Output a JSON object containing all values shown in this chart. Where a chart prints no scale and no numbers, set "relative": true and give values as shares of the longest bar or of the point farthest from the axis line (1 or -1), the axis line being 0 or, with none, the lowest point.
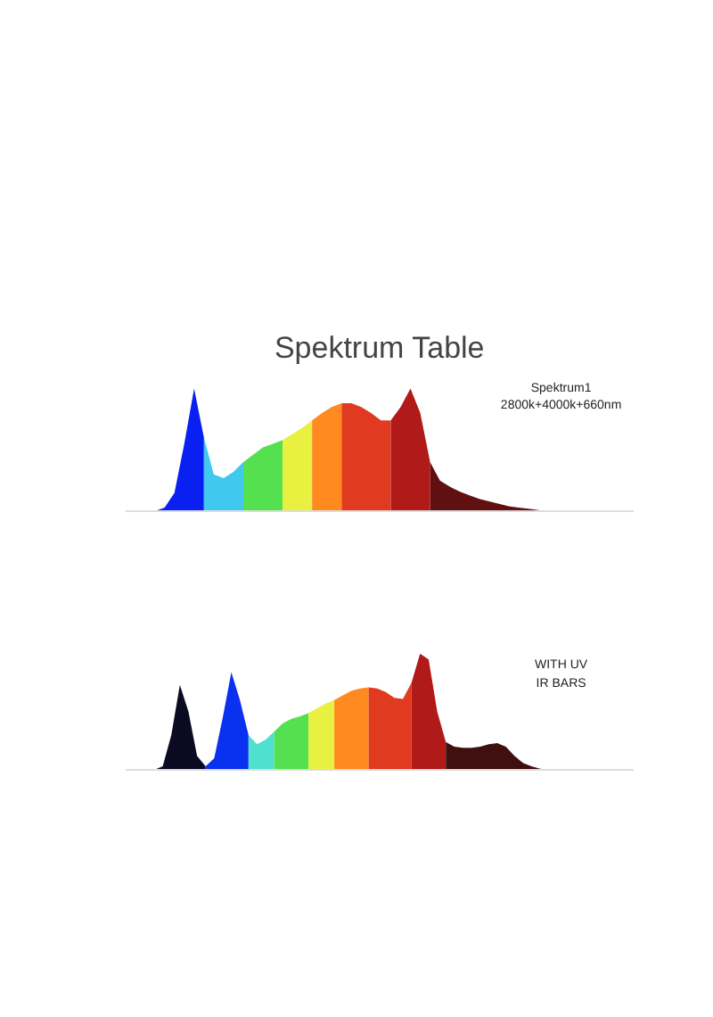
{
  "chart_data": [
    {
      "type": "area",
      "title": "Spektrum Table",
      "relative": true,
      "annotations": [
        "Spektrum1",
        "2800k+4000k+660nm"
      ],
      "categories": [
        null,
        null,
        null,
        null,
        null,
        null,
        null,
        null,
        null,
        null,
        null,
        null,
        null,
        null,
        null,
        null,
        null,
        null,
        null,
        null,
        null,
        null,
        null,
        null,
        null,
        null,
        null,
        null,
        null,
        null,
        null,
        null,
        null,
        null,
        null,
        null,
        null,
        null,
        null,
        null,
        null
      ],
      "series": [
        {
          "color": "#0a20f0",
          "values": [
            0,
            0.03,
            0.15,
            0.55,
            1.0,
            0.6,
            null,
            null,
            null,
            null,
            null,
            null,
            null,
            null,
            null,
            null,
            null,
            null,
            null,
            null,
            null,
            null,
            null,
            null,
            null,
            null,
            null,
            null,
            null,
            null,
            null,
            null,
            null,
            null,
            null,
            null,
            null,
            null,
            null,
            null,
            null
          ]
        },
        {
          "color": "#40c8f0",
          "values": [
            null,
            null,
            null,
            null,
            null,
            0.6,
            0.3,
            0.27,
            0.32,
            0.4,
            null,
            null,
            null,
            null,
            null,
            null,
            null,
            null,
            null,
            null,
            null,
            null,
            null,
            null,
            null,
            null,
            null,
            null,
            null,
            null,
            null,
            null,
            null,
            null,
            null,
            null,
            null,
            null,
            null,
            null,
            null
          ]
        },
        {
          "color": "#55e050",
          "values": [
            null,
            null,
            null,
            null,
            null,
            null,
            null,
            null,
            null,
            0.4,
            0.46,
            0.52,
            0.55,
            0.58,
            null,
            null,
            null,
            null,
            null,
            null,
            null,
            null,
            null,
            null,
            null,
            null,
            null,
            null,
            null,
            null,
            null,
            null,
            null,
            null,
            null,
            null,
            null,
            null,
            null,
            null,
            null
          ]
        },
        {
          "color": "#e8f040",
          "values": [
            null,
            null,
            null,
            null,
            null,
            null,
            null,
            null,
            null,
            null,
            null,
            null,
            null,
            0.58,
            0.63,
            0.68,
            0.74,
            null,
            null,
            null,
            null,
            null,
            null,
            null,
            null,
            null,
            null,
            null,
            null,
            null,
            null,
            null,
            null,
            null,
            null,
            null,
            null,
            null,
            null,
            null,
            null
          ]
        },
        {
          "color": "#ff8a20",
          "values": [
            null,
            null,
            null,
            null,
            null,
            null,
            null,
            null,
            null,
            null,
            null,
            null,
            null,
            null,
            null,
            null,
            0.74,
            0.8,
            0.85,
            0.88,
            null,
            null,
            null,
            null,
            null,
            null,
            null,
            null,
            null,
            null,
            null,
            null,
            null,
            null,
            null,
            null,
            null,
            null,
            null,
            null,
            null
          ]
        },
        {
          "color": "#e03a20",
          "values": [
            null,
            null,
            null,
            null,
            null,
            null,
            null,
            null,
            null,
            null,
            null,
            null,
            null,
            null,
            null,
            null,
            null,
            null,
            null,
            0.88,
            0.88,
            0.85,
            0.8,
            0.74,
            0.74,
            null,
            null,
            null,
            null,
            null,
            null,
            null,
            null,
            null,
            null,
            null,
            null,
            null,
            null,
            null,
            null
          ]
        },
        {
          "color": "#b01a18",
          "values": [
            null,
            null,
            null,
            null,
            null,
            null,
            null,
            null,
            null,
            null,
            null,
            null,
            null,
            null,
            null,
            null,
            null,
            null,
            null,
            null,
            null,
            null,
            null,
            null,
            0.74,
            0.85,
            1.0,
            0.8,
            0.4,
            null,
            null,
            null,
            null,
            null,
            null,
            null,
            null,
            null,
            null,
            null,
            null
          ]
        },
        {
          "color": "#601010",
          "values": [
            null,
            null,
            null,
            null,
            null,
            null,
            null,
            null,
            null,
            null,
            null,
            null,
            null,
            null,
            null,
            null,
            null,
            null,
            null,
            null,
            null,
            null,
            null,
            null,
            null,
            null,
            null,
            null,
            0.4,
            0.25,
            0.2,
            0.16,
            0.13,
            0.1,
            0.08,
            0.06,
            0.04,
            0.03,
            0.02,
            0.01,
            0
          ]
        }
      ]
    },
    {
      "type": "area",
      "relative": true,
      "annotations": [
        "WITH UV",
        "IR BARS"
      ],
      "categories": [
        null,
        null,
        null,
        null,
        null,
        null,
        null,
        null,
        null,
        null,
        null,
        null,
        null,
        null,
        null,
        null,
        null,
        null,
        null,
        null,
        null,
        null,
        null,
        null,
        null,
        null,
        null,
        null,
        null,
        null,
        null,
        null,
        null,
        null,
        null,
        null,
        null,
        null,
        null,
        null,
        null,
        null,
        null,
        null,
        null,
        null,
        null
      ],
      "series": [
        {
          "color": "#0a0a20",
          "values": [
            0,
            0.03,
            0.3,
            0.73,
            0.5,
            0.12,
            0.03,
            null,
            null,
            null,
            null,
            null,
            null,
            null,
            null,
            null,
            null,
            null,
            null,
            null,
            null,
            null,
            null,
            null,
            null,
            null,
            null,
            null,
            null,
            null,
            null,
            null,
            null,
            null,
            null,
            null,
            null,
            null,
            null,
            null,
            null,
            null,
            null,
            null,
            null,
            null,
            null
          ]
        },
        {
          "color": "#0a30f0",
          "values": [
            null,
            null,
            null,
            null,
            null,
            null,
            0.03,
            0.1,
            0.45,
            0.84,
            0.6,
            0.3,
            null,
            null,
            null,
            null,
            null,
            null,
            null,
            null,
            null,
            null,
            null,
            null,
            null,
            null,
            null,
            null,
            null,
            null,
            null,
            null,
            null,
            null,
            null,
            null,
            null,
            null,
            null,
            null,
            null,
            null,
            null,
            null,
            null,
            null,
            null
          ]
        },
        {
          "color": "#50e0d0",
          "values": [
            null,
            null,
            null,
            null,
            null,
            null,
            null,
            null,
            null,
            null,
            null,
            0.3,
            0.22,
            0.26,
            0.33,
            null,
            null,
            null,
            null,
            null,
            null,
            null,
            null,
            null,
            null,
            null,
            null,
            null,
            null,
            null,
            null,
            null,
            null,
            null,
            null,
            null,
            null,
            null,
            null,
            null,
            null,
            null,
            null,
            null,
            null,
            null,
            null
          ]
        },
        {
          "color": "#55e050",
          "values": [
            null,
            null,
            null,
            null,
            null,
            null,
            null,
            null,
            null,
            null,
            null,
            null,
            null,
            null,
            0.33,
            0.4,
            0.44,
            0.46,
            0.49,
            null,
            null,
            null,
            null,
            null,
            null,
            null,
            null,
            null,
            null,
            null,
            null,
            null,
            null,
            null,
            null,
            null,
            null,
            null,
            null,
            null,
            null,
            null,
            null,
            null,
            null,
            null,
            null
          ]
        },
        {
          "color": "#e8f040",
          "values": [
            null,
            null,
            null,
            null,
            null,
            null,
            null,
            null,
            null,
            null,
            null,
            null,
            null,
            null,
            null,
            null,
            null,
            null,
            0.49,
            0.53,
            0.57,
            0.6,
            null,
            null,
            null,
            null,
            null,
            null,
            null,
            null,
            null,
            null,
            null,
            null,
            null,
            null,
            null,
            null,
            null,
            null,
            null,
            null,
            null,
            null,
            null,
            null,
            null
          ]
        },
        {
          "color": "#ff8a20",
          "values": [
            null,
            null,
            null,
            null,
            null,
            null,
            null,
            null,
            null,
            null,
            null,
            null,
            null,
            null,
            null,
            null,
            null,
            null,
            null,
            null,
            null,
            0.6,
            0.64,
            0.68,
            0.7,
            0.71,
            null,
            null,
            null,
            null,
            null,
            null,
            null,
            null,
            null,
            null,
            null,
            null,
            null,
            null,
            null,
            null,
            null,
            null,
            null,
            null,
            null
          ]
        },
        {
          "color": "#e03a20",
          "values": [
            null,
            null,
            null,
            null,
            null,
            null,
            null,
            null,
            null,
            null,
            null,
            null,
            null,
            null,
            null,
            null,
            null,
            null,
            null,
            null,
            null,
            null,
            null,
            null,
            null,
            0.71,
            0.7,
            0.67,
            0.62,
            0.61,
            0.75,
            null,
            null,
            null,
            null,
            null,
            null,
            null,
            null,
            null,
            null,
            null,
            null,
            null,
            null,
            null,
            null
          ]
        },
        {
          "color": "#b01a18",
          "values": [
            null,
            null,
            null,
            null,
            null,
            null,
            null,
            null,
            null,
            null,
            null,
            null,
            null,
            null,
            null,
            null,
            null,
            null,
            null,
            null,
            null,
            null,
            null,
            null,
            null,
            null,
            null,
            null,
            null,
            null,
            0.75,
            1.0,
            0.95,
            0.5,
            0.24,
            null,
            null,
            null,
            null,
            null,
            null,
            null,
            null,
            null,
            null,
            null,
            null
          ]
        },
        {
          "color": "#401010",
          "values": [
            null,
            null,
            null,
            null,
            null,
            null,
            null,
            null,
            null,
            null,
            null,
            null,
            null,
            null,
            null,
            null,
            null,
            null,
            null,
            null,
            null,
            null,
            null,
            null,
            null,
            null,
            null,
            null,
            null,
            null,
            null,
            null,
            null,
            null,
            0.24,
            0.2,
            0.19,
            0.19,
            0.2,
            0.22,
            0.23,
            0.2,
            0.12,
            0.06,
            0.03,
            0.01,
            0
          ]
        }
      ]
    }
  ]
}
